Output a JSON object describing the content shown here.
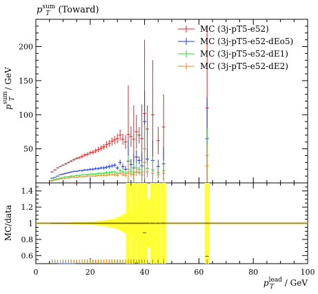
{
  "title": {
    "main": "p",
    "sub": "T",
    "sup": "sum",
    "rest": " (Toward)"
  },
  "axes": {
    "ylabel_top": {
      "p": "p",
      "sub": "T",
      "sup": "sum",
      "rest": " / GeV"
    },
    "ylabel_ratio": "MC/data",
    "xlabel": {
      "p": "p",
      "sub": "T",
      "sup": "lead",
      "rest": " / GeV"
    }
  },
  "colors": {
    "e52": "#d62728",
    "dEo5": "#1f3bd6",
    "dE1": "#2fd62f",
    "dE2": "#e08a1c",
    "band": "#ffff33",
    "ratio_line": "#a08c00"
  },
  "chart_data": [
    {
      "type": "scatter",
      "panel": "main",
      "xlim": [
        0,
        100
      ],
      "ylim": [
        0,
        240
      ],
      "xticks": [
        0,
        20,
        40,
        60,
        80,
        100
      ],
      "xtick_labels": [
        "0",
        "20",
        "40",
        "60",
        "80",
        "100"
      ],
      "yticks": [
        50,
        100,
        150,
        200
      ],
      "ytick_labels": [
        "50",
        "100",
        "150",
        "200"
      ],
      "legend_position": "top-right",
      "x": [
        6,
        7,
        8,
        9,
        10,
        11,
        12,
        13,
        14,
        15,
        16,
        17,
        18,
        19,
        20,
        21,
        22,
        23,
        24,
        25,
        26,
        27,
        28,
        29,
        30,
        31,
        32,
        33,
        34,
        35,
        36,
        37,
        38,
        39,
        40,
        41,
        43,
        45,
        47,
        63
      ],
      "series": [
        {
          "name": "MC (3j-pT5-e52)",
          "color_key": "e52",
          "values": [
            16,
            19,
            22,
            24,
            26,
            28,
            30,
            32,
            34,
            36,
            37,
            39,
            41,
            42,
            44,
            45,
            47,
            49,
            51,
            53,
            56,
            58,
            61,
            63,
            65,
            70,
            64,
            60,
            71,
            68,
            64,
            75,
            70,
            65,
            102,
            79,
            100,
            62,
            82,
            110
          ],
          "errors": [
            1,
            1,
            1,
            1,
            1,
            1.5,
            1.5,
            1.5,
            2,
            2,
            2,
            2.5,
            2.5,
            3,
            3,
            3,
            3.5,
            4,
            4,
            4,
            5,
            5,
            6,
            6,
            7,
            8,
            8,
            10,
            72,
            15,
            50,
            25,
            12,
            50,
            108,
            35,
            80,
            20,
            48,
            120
          ]
        },
        {
          "name": "MC (3j-pT5-e52-dEo5)",
          "color_key": "dEo5",
          "values": [
            7,
            8,
            10,
            12,
            13,
            14,
            15,
            16,
            17,
            17,
            18,
            18,
            19,
            19,
            20,
            20,
            21,
            21,
            22,
            22,
            23,
            24,
            25,
            26,
            22,
            30,
            24,
            20,
            32,
            27,
            22,
            38,
            33,
            25,
            90,
            35,
            33,
            24,
            28,
            65
          ],
          "errors": [
            0.5,
            0.5,
            0.5,
            0.5,
            1,
            1,
            1,
            1,
            1,
            1,
            1,
            1.5,
            1.5,
            1.5,
            2,
            2,
            2,
            2,
            2,
            2.5,
            2.5,
            3,
            3,
            3,
            3,
            4,
            4,
            5,
            30,
            8,
            20,
            10,
            6,
            20,
            45,
            15,
            30,
            10,
            25,
            60
          ]
        },
        {
          "name": "MC (3j-pT5-e52-dE1)",
          "color_key": "dE1",
          "values": [
            4,
            5,
            6,
            7,
            8,
            9,
            9,
            10,
            10,
            11,
            11,
            12,
            12,
            12,
            13,
            13,
            13,
            14,
            14,
            14,
            15,
            15,
            16,
            16,
            14,
            18,
            16,
            14,
            20,
            17,
            15,
            22,
            20,
            16,
            50,
            21,
            19,
            15,
            18,
            40
          ],
          "errors": [
            0.5,
            0.5,
            0.5,
            0.5,
            0.5,
            0.5,
            1,
            1,
            1,
            1,
            1,
            1,
            1,
            1,
            1,
            1.5,
            1.5,
            1.5,
            1.5,
            2,
            2,
            2,
            2,
            2,
            2,
            3,
            3,
            4,
            20,
            6,
            15,
            8,
            5,
            15,
            35,
            10,
            20,
            8,
            15,
            40
          ]
        },
        {
          "name": "MC (3j-pT5-e52-dE2)",
          "color_key": "dE2",
          "values": [
            3,
            4,
            5,
            6,
            6,
            7,
            7,
            8,
            8,
            8,
            9,
            9,
            9,
            10,
            10,
            10,
            10,
            11,
            11,
            11,
            11,
            12,
            12,
            12,
            11,
            14,
            12,
            11,
            15,
            13,
            12,
            16,
            15,
            12,
            30,
            16,
            14,
            12,
            14,
            25
          ],
          "errors": [
            0.5,
            0.5,
            0.5,
            0.5,
            0.5,
            0.5,
            0.5,
            1,
            1,
            1,
            1,
            1,
            1,
            1,
            1,
            1,
            1,
            1,
            1.5,
            1.5,
            1.5,
            1.5,
            1.5,
            2,
            2,
            2,
            2,
            3,
            15,
            4,
            10,
            6,
            4,
            10,
            25,
            8,
            15,
            6,
            10,
            30
          ]
        }
      ]
    },
    {
      "type": "area",
      "panel": "ratio",
      "xlim": [
        0,
        100
      ],
      "ylim": [
        0.5,
        1.5
      ],
      "yticks": [
        0.6,
        0.8,
        1.0,
        1.2,
        1.4
      ],
      "ytick_labels": [
        "0.6",
        "0.8",
        "1",
        "1.2",
        "1.4"
      ],
      "reference": 1,
      "band_x": [
        6,
        7,
        8,
        9,
        10,
        11,
        12,
        13,
        14,
        15,
        16,
        17,
        18,
        19,
        20,
        21,
        22,
        23,
        24,
        25,
        26,
        27,
        28,
        29,
        30,
        31,
        32,
        33,
        34,
        35,
        36,
        37,
        38,
        39,
        40,
        41,
        43,
        45,
        47,
        63
      ],
      "band_half_width": [
        0.005,
        0.005,
        0.006,
        0.006,
        0.007,
        0.008,
        0.009,
        0.01,
        0.011,
        0.012,
        0.013,
        0.014,
        0.016,
        0.018,
        0.02,
        0.022,
        0.024,
        0.026,
        0.03,
        0.034,
        0.04,
        0.045,
        0.05,
        0.06,
        0.07,
        0.08,
        0.1,
        0.12,
        0.6,
        0.15,
        0.6,
        0.2,
        0.6,
        0.25,
        0.6,
        0.3,
        0.6,
        0.6,
        0.6,
        0.6
      ]
    }
  ]
}
